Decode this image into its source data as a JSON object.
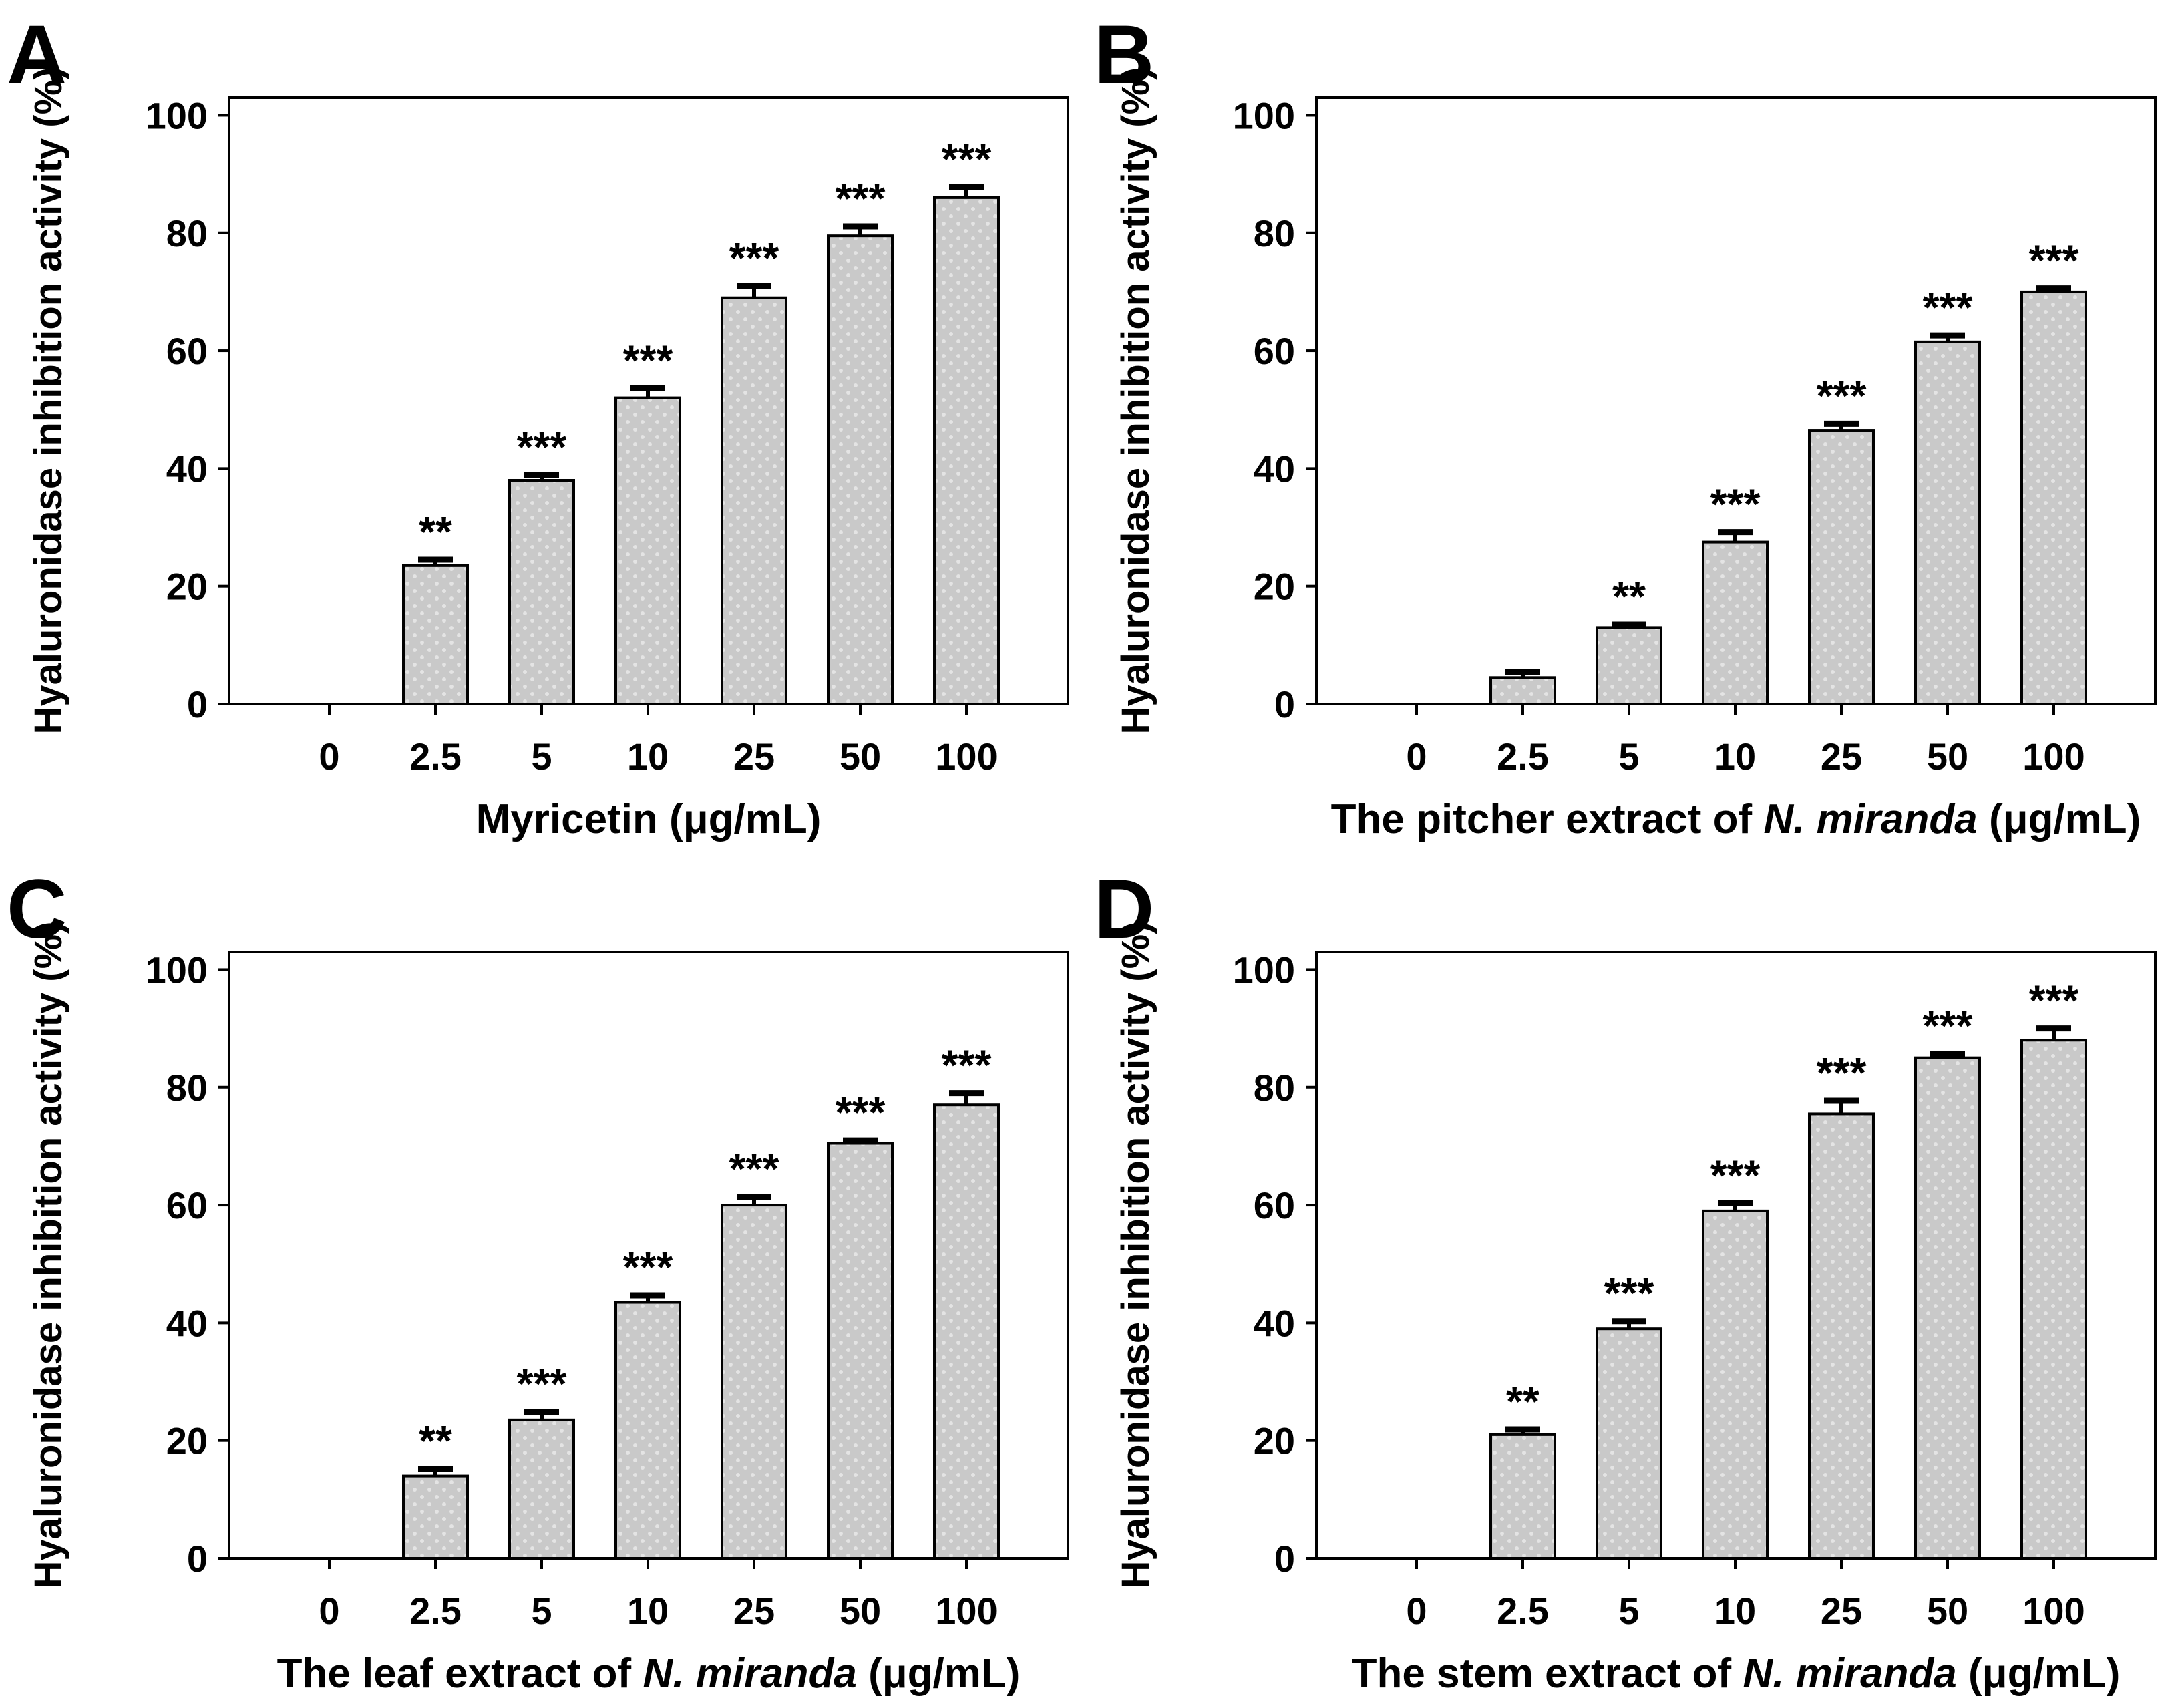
{
  "figure": {
    "background": "#ffffff",
    "text_color": "#000000",
    "bar_fill": "#c9c9c9",
    "bar_dot_color": "#e4e4e4",
    "bar_stroke": "#000000",
    "axis_color": "#000000",
    "ylabel": "Hyaluronidase inhibition activity (%)",
    "categories": [
      "0",
      "2.5",
      "5",
      "10",
      "25",
      "50",
      "100"
    ]
  },
  "chart_data": [
    {
      "panel": "A",
      "type": "bar",
      "title": "",
      "xlabel_parts": [
        {
          "text": "Myricetin (",
          "italic": false
        },
        {
          "text": "μg/mL)",
          "italic": false
        }
      ],
      "xlabel_plain": "Myricetin (μg/mL)",
      "ylabel": "Hyaluronidase inhibition activity (%)",
      "categories": [
        "0",
        "2.5",
        "5",
        "10",
        "25",
        "50",
        "100"
      ],
      "values": [
        0,
        23.5,
        38,
        52,
        69,
        79.5,
        86
      ],
      "errors": [
        0,
        1.0,
        0.9,
        1.6,
        2.0,
        1.6,
        1.8
      ],
      "significance": [
        "",
        "**",
        "***",
        "***",
        "***",
        "***",
        "***"
      ],
      "yticks": [
        0,
        20,
        40,
        60,
        80,
        100
      ],
      "ylim": [
        0,
        103
      ],
      "grid": false,
      "legend": "none"
    },
    {
      "panel": "B",
      "type": "bar",
      "title": "",
      "xlabel_parts": [
        {
          "text": "The pitcher extract of ",
          "italic": false
        },
        {
          "text": "N. miranda",
          "italic": true
        },
        {
          "text": " (μg/mL)",
          "italic": false
        }
      ],
      "xlabel_plain": "The pitcher extract of N. miranda (μg/mL)",
      "ylabel": "Hyaluronidase inhibition activity (%)",
      "categories": [
        "0",
        "2.5",
        "5",
        "10",
        "25",
        "50",
        "100"
      ],
      "values": [
        0,
        4.5,
        13,
        27.5,
        46.5,
        61.5,
        70
      ],
      "errors": [
        0,
        1.0,
        0.5,
        1.7,
        1.1,
        1.1,
        0.6
      ],
      "significance": [
        "",
        "",
        "**",
        "***",
        "***",
        "***",
        "***"
      ],
      "yticks": [
        0,
        20,
        40,
        60,
        80,
        100
      ],
      "ylim": [
        0,
        103
      ],
      "grid": false,
      "legend": "none"
    },
    {
      "panel": "C",
      "type": "bar",
      "title": "",
      "xlabel_parts": [
        {
          "text": "The leaf extract of ",
          "italic": false
        },
        {
          "text": "N. miranda",
          "italic": true
        },
        {
          "text": " (μg/mL)",
          "italic": false
        }
      ],
      "xlabel_plain": "The leaf extract of N. miranda (μg/mL)",
      "ylabel": "Hyaluronidase inhibition activity (%)",
      "categories": [
        "0",
        "2.5",
        "5",
        "10",
        "25",
        "50",
        "100"
      ],
      "values": [
        0,
        14,
        23.5,
        43.5,
        60,
        70.5,
        77
      ],
      "errors": [
        0,
        1.2,
        1.4,
        1.2,
        1.4,
        0.5,
        2.0
      ],
      "significance": [
        "",
        "**",
        "***",
        "***",
        "***",
        "***",
        "***"
      ],
      "yticks": [
        0,
        20,
        40,
        60,
        80,
        100
      ],
      "ylim": [
        0,
        103
      ],
      "grid": false,
      "legend": "none"
    },
    {
      "panel": "D",
      "type": "bar",
      "title": "",
      "xlabel_parts": [
        {
          "text": "The stem extract of ",
          "italic": false
        },
        {
          "text": "N. miranda",
          "italic": true
        },
        {
          "text": " (μg/mL)",
          "italic": false
        }
      ],
      "xlabel_plain": "The stem extract of N. miranda (μg/mL)",
      "ylabel": "Hyaluronidase inhibition activity (%)",
      "categories": [
        "0",
        "2.5",
        "5",
        "10",
        "25",
        "50",
        "100"
      ],
      "values": [
        0,
        21,
        39,
        59,
        75.5,
        85,
        88
      ],
      "errors": [
        0,
        0.9,
        1.3,
        1.3,
        2.2,
        0.7,
        2.0
      ],
      "significance": [
        "",
        "**",
        "***",
        "***",
        "***",
        "***",
        "***"
      ],
      "yticks": [
        0,
        20,
        40,
        60,
        80,
        100
      ],
      "ylim": [
        0,
        103
      ],
      "grid": false,
      "legend": "none"
    }
  ]
}
